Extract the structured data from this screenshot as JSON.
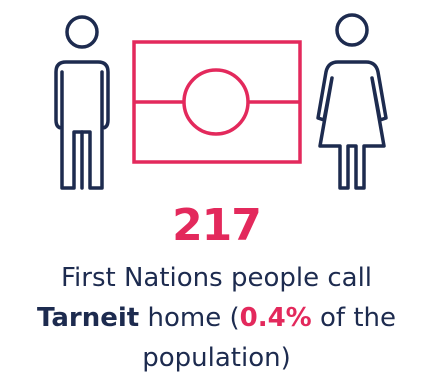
{
  "colors": {
    "accent": "#e3295c",
    "ink": "#1d2b4f"
  },
  "illustration": {
    "icons": [
      "man-icon",
      "aboriginal-flag-icon",
      "woman-icon"
    ]
  },
  "stat": {
    "number": "217"
  },
  "caption": {
    "line1": "First Nations people call",
    "place": "Tarneit",
    "home_text": " home (",
    "percent": "0.4%",
    "of_the": " of the",
    "line3": "population)"
  }
}
